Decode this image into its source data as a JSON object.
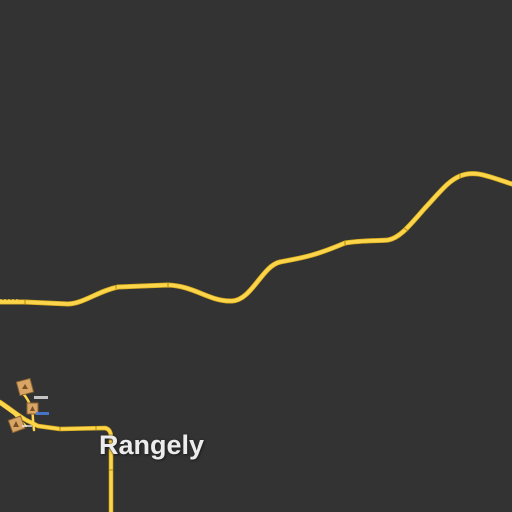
{
  "map": {
    "background_color": "#333333",
    "road_color": "#fdd54a",
    "road_casing_color": "#d9ae1e",
    "poi_color": "#d9a566",
    "poi_icon": "building-icon",
    "places": [
      {
        "name": "Rangely",
        "type": "town-label"
      }
    ]
  }
}
